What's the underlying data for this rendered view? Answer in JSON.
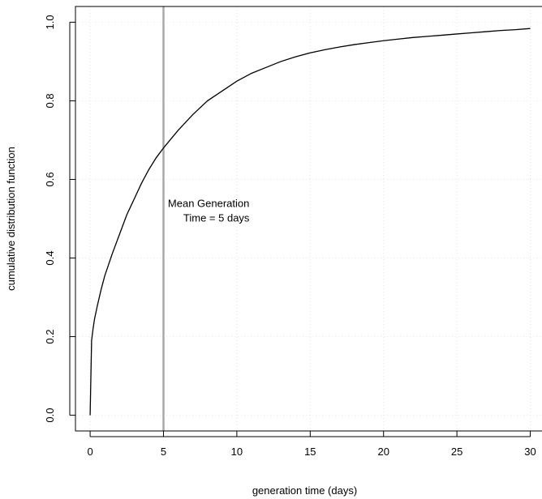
{
  "chart_data": {
    "type": "line",
    "title": "",
    "xlabel": "generation time (days)",
    "ylabel": "cumulative distribution function",
    "xlim": [
      0,
      30
    ],
    "ylim": [
      0,
      1
    ],
    "x_ticks": [
      "0",
      "5",
      "10",
      "15",
      "20",
      "25",
      "30"
    ],
    "y_ticks": [
      "0.0",
      "0.2",
      "0.4",
      "0.6",
      "0.8",
      "1.0"
    ],
    "grid": true,
    "series": [
      {
        "x": [
          0,
          0.1,
          0.2,
          0.3,
          0.5,
          0.75,
          1,
          1.5,
          2,
          2.5,
          3,
          3.5,
          4,
          4.5,
          5,
          6,
          7,
          8,
          9,
          10,
          11,
          12,
          13,
          14,
          15,
          16,
          17,
          18,
          19,
          20,
          21,
          22,
          23,
          24,
          25,
          26,
          27,
          28,
          29,
          30
        ],
        "y": [
          0.0,
          0.19,
          0.22,
          0.245,
          0.28,
          0.32,
          0.355,
          0.41,
          0.46,
          0.51,
          0.55,
          0.59,
          0.625,
          0.655,
          0.68,
          0.725,
          0.765,
          0.8,
          0.825,
          0.85,
          0.87,
          0.885,
          0.9,
          0.912,
          0.922,
          0.93,
          0.937,
          0.943,
          0.948,
          0.953,
          0.957,
          0.961,
          0.964,
          0.967,
          0.97,
          0.973,
          0.976,
          0.979,
          0.981,
          0.984
        ],
        "color": "#000000"
      }
    ],
    "vline": {
      "x": 5,
      "color": "#a9a9a9"
    },
    "annotation": {
      "line1": "Mean Generation",
      "line2": "Time = 5 days",
      "x": 5.3,
      "y": 0.53
    }
  }
}
